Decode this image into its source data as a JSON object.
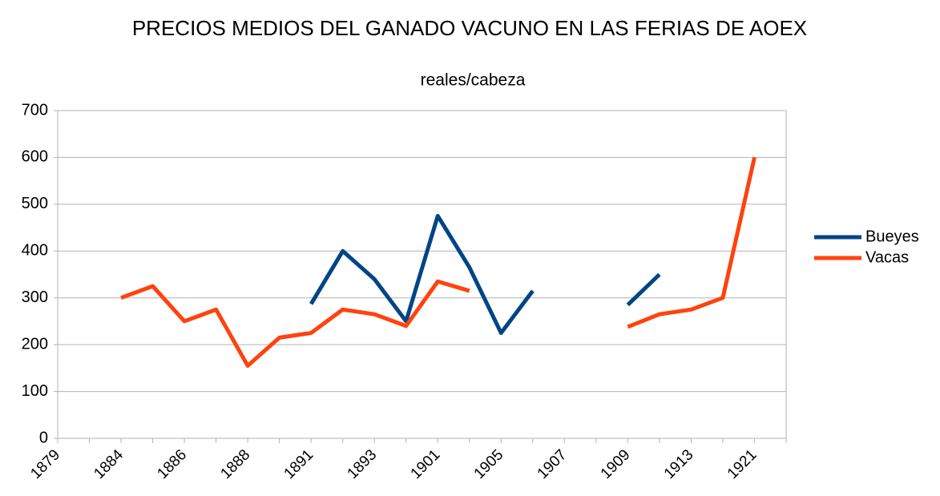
{
  "chart_data": {
    "type": "line",
    "title": "PRECIOS MEDIOS DEL GANADO VACUNO EN LAS FERIAS DE AOEX",
    "subtitle": "reales/cabeza",
    "categories": [
      "1879",
      null,
      "1884",
      null,
      "1886",
      null,
      "1888",
      null,
      "1891",
      null,
      "1893",
      null,
      "1901",
      null,
      "1905",
      null,
      "1907",
      null,
      "1909",
      null,
      "1913",
      null,
      "1921",
      null
    ],
    "series": [
      {
        "name": "Bueyes",
        "color": "#004586",
        "values": [
          null,
          null,
          null,
          null,
          null,
          null,
          null,
          null,
          287,
          400,
          340,
          250,
          475,
          365,
          225,
          315,
          null,
          null,
          285,
          350,
          null,
          null,
          null,
          null
        ]
      },
      {
        "name": "Vacas",
        "color": "#ff420e",
        "values": [
          null,
          null,
          300,
          325,
          250,
          275,
          155,
          215,
          225,
          275,
          265,
          240,
          335,
          315,
          null,
          null,
          null,
          null,
          238,
          265,
          275,
          300,
          600,
          null
        ]
      }
    ],
    "ylim": [
      0,
      700
    ],
    "yticks": [
      0,
      100,
      200,
      300,
      400,
      500,
      600,
      700
    ],
    "grid": true,
    "legend": "right"
  }
}
